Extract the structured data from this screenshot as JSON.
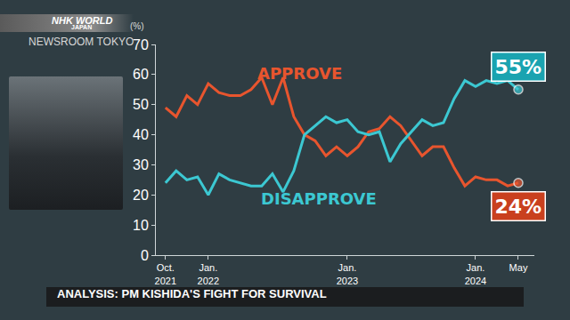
{
  "header": {
    "logo": "NHK WORLD",
    "logo_sub": "JAPAN",
    "program": "NEWSROOM TOKYO"
  },
  "caption": "ANALYSIS: PM KISHIDA'S FIGHT FOR SURVIVAL",
  "chart_data": {
    "type": "line",
    "ylabel": "(%)",
    "categories": [
      "Oct.\n2021",
      null,
      null,
      null,
      "Jan.\n2022",
      null,
      null,
      null,
      null,
      null,
      null,
      null,
      null,
      null,
      null,
      null,
      null,
      "Jan.\n2023",
      null,
      null,
      null,
      null,
      null,
      null,
      null,
      null,
      null,
      null,
      null,
      "Jan.\n2024",
      null,
      null,
      null,
      "May"
    ],
    "series": [
      {
        "name": "APPROVE",
        "color": "#e8552e",
        "values": [
          49,
          46,
          53,
          50,
          57,
          54,
          53,
          53,
          55,
          59,
          50,
          59,
          46,
          40,
          38,
          33,
          36,
          33,
          36,
          41,
          42,
          46,
          43,
          38,
          33,
          36,
          36,
          29,
          23,
          26,
          25,
          25,
          23,
          24
        ],
        "value_labels": [
          null,
          null,
          null,
          null,
          null,
          null,
          null,
          null,
          null,
          null,
          null,
          null,
          null,
          null,
          null,
          null,
          null,
          null,
          null,
          null,
          null,
          null,
          null,
          null,
          null,
          null,
          null,
          null,
          null,
          null,
          null,
          null,
          null,
          "24%"
        ]
      },
      {
        "name": "DISAPPROVE",
        "color": "#3cc8d2",
        "values": [
          24,
          28,
          25,
          26,
          20,
          27,
          25,
          24,
          23,
          23,
          27,
          21,
          28,
          40,
          43,
          46,
          44,
          45,
          41,
          40,
          41,
          31,
          37,
          41,
          45,
          43,
          44,
          52,
          58,
          56,
          58,
          57,
          58,
          55
        ],
        "value_labels": [
          null,
          null,
          null,
          null,
          null,
          null,
          null,
          null,
          null,
          null,
          null,
          null,
          null,
          null,
          null,
          null,
          null,
          null,
          null,
          null,
          null,
          null,
          null,
          null,
          null,
          null,
          null,
          null,
          null,
          null,
          null,
          null,
          null,
          "55%"
        ]
      }
    ],
    "ylim": [
      0,
      70
    ],
    "yticks": [
      0,
      10,
      20,
      30,
      40,
      50,
      60,
      70
    ],
    "grid": false
  }
}
